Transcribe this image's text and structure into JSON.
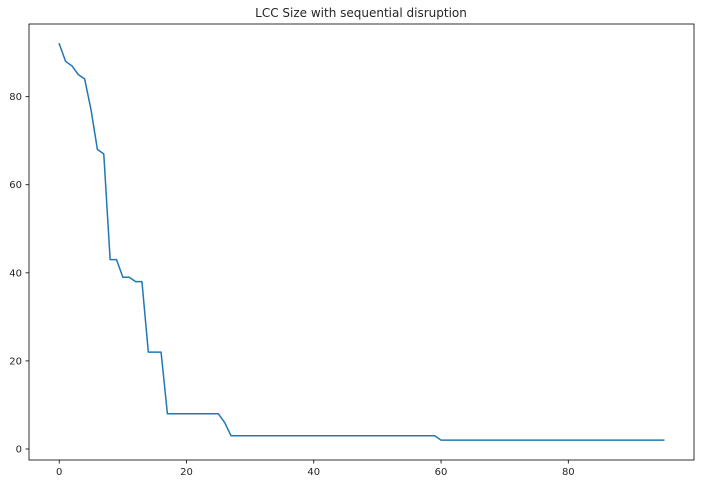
{
  "chart_data": {
    "type": "line",
    "title": "LCC Size with sequential disruption",
    "xlabel": "",
    "ylabel": "",
    "xlim": [
      -4.75,
      99.75
    ],
    "ylim": [
      -2.5,
      96.5
    ],
    "xticks": [
      0,
      20,
      40,
      60,
      80
    ],
    "yticks": [
      0,
      20,
      40,
      60,
      80
    ],
    "grid": false,
    "legend": "none",
    "series": [
      {
        "color": "#1f77b4",
        "x": [
          0,
          1,
          2,
          3,
          4,
          5,
          6,
          7,
          8,
          9,
          10,
          11,
          12,
          13,
          14,
          15,
          16,
          17,
          18,
          19,
          20,
          21,
          22,
          23,
          24,
          25,
          26,
          27,
          28,
          29,
          30,
          31,
          32,
          33,
          34,
          35,
          36,
          37,
          38,
          39,
          40,
          41,
          42,
          43,
          44,
          45,
          46,
          47,
          48,
          49,
          50,
          51,
          52,
          53,
          54,
          55,
          56,
          57,
          58,
          59,
          60,
          61,
          62,
          63,
          64,
          65,
          66,
          67,
          68,
          69,
          70,
          71,
          72,
          73,
          74,
          75,
          76,
          77,
          78,
          79,
          80,
          81,
          82,
          83,
          84,
          85,
          86,
          87,
          88,
          89,
          90,
          91,
          92,
          93,
          94,
          95
        ],
        "y": [
          92,
          88,
          87,
          85,
          84,
          77,
          68,
          67,
          43,
          43,
          39,
          39,
          38,
          38,
          22,
          22,
          22,
          8,
          8,
          8,
          8,
          8,
          8,
          8,
          8,
          8,
          6,
          3,
          3,
          3,
          3,
          3,
          3,
          3,
          3,
          3,
          3,
          3,
          3,
          3,
          3,
          3,
          3,
          3,
          3,
          3,
          3,
          3,
          3,
          3,
          3,
          3,
          3,
          3,
          3,
          3,
          3,
          3,
          3,
          3,
          2,
          2,
          2,
          2,
          2,
          2,
          2,
          2,
          2,
          2,
          2,
          2,
          2,
          2,
          2,
          2,
          2,
          2,
          2,
          2,
          2,
          2,
          2,
          2,
          2,
          2,
          2,
          2,
          2,
          2,
          2,
          2,
          2,
          2,
          2,
          2
        ]
      }
    ]
  }
}
